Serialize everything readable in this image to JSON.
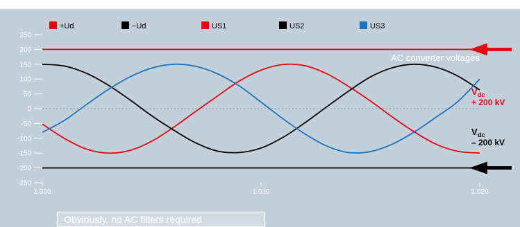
{
  "chart_data": {
    "type": "line",
    "title": "",
    "xlabel": "",
    "ylabel": "",
    "xlim": [
      1.0,
      1.02
    ],
    "ylim": [
      -250,
      250
    ],
    "x_ticks": [
      "1.000",
      "1.010",
      "1.020"
    ],
    "x_tick_values": [
      1.0,
      1.01,
      1.02
    ],
    "y_ticks": [
      "250",
      "200",
      "150",
      "100",
      "50",
      "0",
      "-50",
      "-100",
      "-150",
      "-200",
      "-250"
    ],
    "y_tick_values": [
      250,
      200,
      150,
      100,
      50,
      0,
      -50,
      -100,
      -150,
      -200,
      -250
    ],
    "zero_line": "dotted",
    "legend_position": "top",
    "series": [
      {
        "name": "+Ud",
        "color": "#e30613",
        "x": [
          1.0,
          1.02
        ],
        "y": [
          200,
          200
        ]
      },
      {
        "name": "−Ud",
        "color": "#000000",
        "x": [
          1.0,
          1.02
        ],
        "y": [
          -200,
          -200
        ]
      },
      {
        "name": "US1",
        "color": "#e30613",
        "x": [
          1.0,
          1.001,
          1.002,
          1.003,
          1.004,
          1.005,
          1.006,
          1.007,
          1.008,
          1.009,
          1.01,
          1.011,
          1.012,
          1.013,
          1.014,
          1.015,
          1.016,
          1.017,
          1.018,
          1.019,
          1.02
        ],
        "y": [
          -52,
          -100,
          -136,
          -150,
          -141,
          -110,
          -63,
          -10,
          42,
          93,
          130,
          149,
          145,
          118,
          75,
          26,
          -28,
          -78,
          -120,
          -144,
          -150
        ]
      },
      {
        "name": "US2",
        "color": "#000000",
        "x": [
          1.0,
          1.001,
          1.002,
          1.003,
          1.004,
          1.005,
          1.006,
          1.007,
          1.008,
          1.009,
          1.01,
          1.011,
          1.012,
          1.013,
          1.014,
          1.015,
          1.016,
          1.017,
          1.018,
          1.019,
          1.02
        ],
        "y": [
          150,
          144,
          120,
          80,
          30,
          -24,
          -72,
          -115,
          -143,
          -148,
          -133,
          -97,
          -48,
          6,
          59,
          107,
          138,
          150,
          140,
          110,
          63
        ]
      },
      {
        "name": "US3",
        "color": "#1a73c1",
        "x": [
          1.0,
          1.001,
          1.002,
          1.003,
          1.004,
          1.005,
          1.006,
          1.007,
          1.008,
          1.009,
          1.01,
          1.011,
          1.012,
          1.013,
          1.014,
          1.015,
          1.016,
          1.017,
          1.018,
          1.019,
          1.02
        ],
        "y": [
          -80,
          -40,
          13,
          64,
          107,
          137,
          150,
          143,
          118,
          77,
          22,
          -34,
          -85,
          -126,
          -148,
          -145,
          -120,
          -79,
          -29,
          24,
          100
        ]
      }
    ],
    "annotations": [
      {
        "id": "ac",
        "text": "AC converter voltages",
        "color": "#ffffff"
      },
      {
        "id": "vpos",
        "main": "V",
        "sub": "dc",
        "line2": "+ 200 kV",
        "color": "#e30613"
      },
      {
        "id": "vneg",
        "main": "V",
        "sub": "dc",
        "line2": "– 200 kV",
        "color": "#000000"
      }
    ],
    "arrows": [
      {
        "target": "+Ud",
        "color": "#e30613",
        "direction": "left"
      },
      {
        "target": "−Ud",
        "color": "#000000",
        "direction": "left"
      }
    ],
    "note": "Obviously, no AC filters required"
  }
}
